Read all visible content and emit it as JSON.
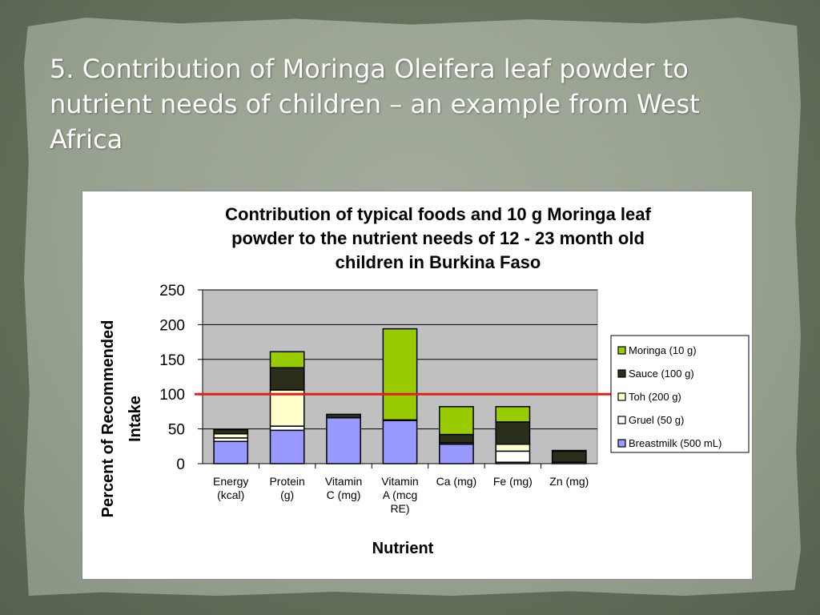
{
  "slide": {
    "title": "5.  Contribution of Moringa Oleifera leaf powder to nutrient needs of children – an example from West Africa"
  },
  "chart_data": {
    "type": "bar",
    "stacked": true,
    "title_lines": [
      "Contribution of typical foods and 10 g Moringa leaf",
      "powder to the nutrient needs of 12 - 23 month old",
      "children in Burkina Faso"
    ],
    "xlabel": "Nutrient",
    "ylabel_lines": [
      "Percent of Recommended",
      "Intake"
    ],
    "ylim": [
      0,
      250
    ],
    "yticks": [
      0,
      50,
      100,
      150,
      200,
      250
    ],
    "grid": true,
    "legend_position": "right",
    "reference_line": {
      "value": 100,
      "color": "#e0201b"
    },
    "categories": [
      {
        "name": "Energy (kcal)",
        "lines": [
          "Energy",
          "(kcal)"
        ]
      },
      {
        "name": "Protein (g)",
        "lines": [
          "Protein",
          "(g)"
        ]
      },
      {
        "name": "Vitamin C (mg)",
        "lines": [
          "Vitamin",
          "C (mg)"
        ]
      },
      {
        "name": "Vitamin A (mcg RE)",
        "lines": [
          "Vitamin",
          "A (mcg",
          "RE)"
        ]
      },
      {
        "name": "Ca (mg)",
        "lines": [
          "Ca (mg)"
        ]
      },
      {
        "name": "Fe (mg)",
        "lines": [
          "Fe (mg)"
        ]
      },
      {
        "name": "Zn (mg)",
        "lines": [
          "Zn (mg)"
        ]
      }
    ],
    "series": [
      {
        "name": "Breastmilk (500 mL)",
        "color": "#9999ff",
        "values": [
          32,
          48,
          66,
          62,
          28,
          2,
          2
        ]
      },
      {
        "name": "Gruel (50 g)",
        "color": "#ffffff",
        "values": [
          5,
          6,
          0,
          0,
          0,
          16,
          0
        ]
      },
      {
        "name": "Toh (200 g)",
        "color": "#ffffcc",
        "values": [
          6,
          52,
          0,
          0,
          2,
          10,
          0
        ]
      },
      {
        "name": "Sauce (100 g)",
        "color": "#2b2e1b",
        "values": [
          6,
          32,
          5,
          1,
          12,
          32,
          16
        ]
      },
      {
        "name": "Moringa (10 g)",
        "color": "#99cc00",
        "values": [
          0,
          23,
          0,
          131,
          40,
          22,
          1
        ]
      }
    ]
  }
}
